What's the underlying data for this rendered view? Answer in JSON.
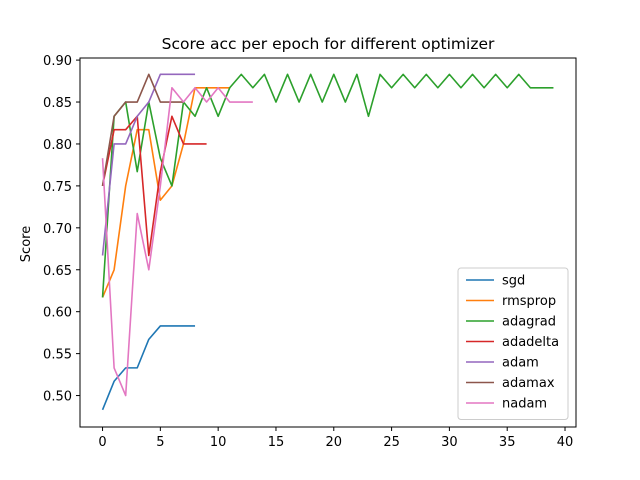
{
  "chart_data": {
    "type": "line",
    "title": "Score acc per epoch for different optimizer",
    "xlabel": "",
    "ylabel": "Score",
    "xlim": [
      -1.95,
      40.95
    ],
    "ylim": [
      0.4625,
      0.9025
    ],
    "xticks": [
      0,
      5,
      10,
      15,
      20,
      25,
      30,
      35,
      40
    ],
    "yticks": [
      0.5,
      0.55,
      0.6,
      0.65,
      0.7,
      0.75,
      0.8,
      0.85,
      0.9
    ],
    "ytick_labels": [
      "0.50",
      "0.55",
      "0.60",
      "0.65",
      "0.70",
      "0.75",
      "0.80",
      "0.85",
      "0.90"
    ],
    "grid": false,
    "legend_position": "lower-right",
    "series": [
      {
        "name": "sgd",
        "color": "#1f77b4",
        "values": [
          0.483,
          0.517,
          0.533,
          0.533,
          0.567,
          0.583,
          0.583,
          0.583,
          0.583
        ]
      },
      {
        "name": "rmsprop",
        "color": "#ff7f0e",
        "values": [
          0.617,
          0.65,
          0.75,
          0.817,
          0.817,
          0.733,
          0.75,
          0.8,
          0.867,
          0.867,
          0.867,
          0.867
        ]
      },
      {
        "name": "adagrad",
        "color": "#2ca02c",
        "values": [
          0.617,
          0.833,
          0.85,
          0.767,
          0.85,
          0.783,
          0.75,
          0.85,
          0.833,
          0.867,
          0.833,
          0.867,
          0.883,
          0.867,
          0.883,
          0.85,
          0.883,
          0.85,
          0.883,
          0.85,
          0.883,
          0.85,
          0.883,
          0.833,
          0.883,
          0.867,
          0.883,
          0.867,
          0.883,
          0.867,
          0.883,
          0.867,
          0.883,
          0.867,
          0.883,
          0.867,
          0.883,
          0.867,
          0.867,
          0.867
        ]
      },
      {
        "name": "adadelta",
        "color": "#d62728",
        "values": [
          0.75,
          0.817,
          0.817,
          0.833,
          0.667,
          0.767,
          0.833,
          0.8,
          0.8,
          0.8
        ]
      },
      {
        "name": "adam",
        "color": "#9467bd",
        "values": [
          0.667,
          0.8,
          0.8,
          0.833,
          0.85,
          0.883,
          0.883,
          0.883,
          0.883
        ]
      },
      {
        "name": "adamax",
        "color": "#8c564b",
        "values": [
          0.75,
          0.833,
          0.85,
          0.85,
          0.883,
          0.85,
          0.85,
          0.85
        ]
      },
      {
        "name": "nadam",
        "color": "#e377c2",
        "values": [
          0.783,
          0.533,
          0.5,
          0.717,
          0.65,
          0.75,
          0.867,
          0.85,
          0.867,
          0.85,
          0.867,
          0.85,
          0.85,
          0.85
        ]
      }
    ]
  }
}
